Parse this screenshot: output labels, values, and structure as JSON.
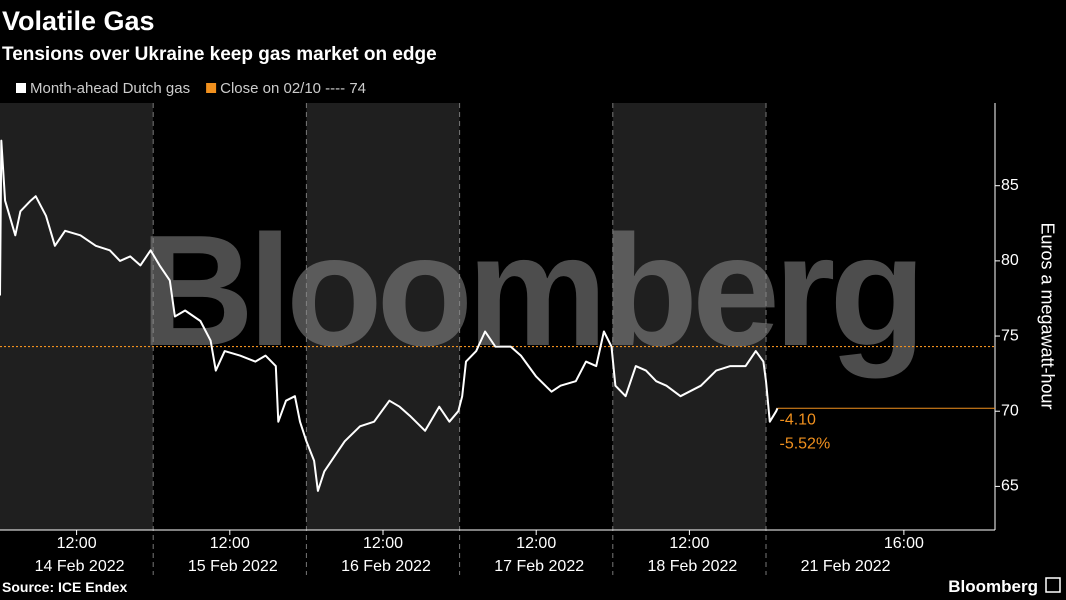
{
  "chart_data": {
    "type": "line",
    "title": "Volatile Gas",
    "subtitle": "Tensions over Ukraine keep gas market on edge",
    "y_axis_label": "Euros a megawatt-hour",
    "source": "Source: ICE Endex",
    "brand": "Bloomberg",
    "watermark": "Bloomberg",
    "days": [
      "14 Feb 2022",
      "15 Feb 2022",
      "16 Feb 2022",
      "17 Feb 2022",
      "18 Feb 2022",
      "21 Feb 2022"
    ],
    "x": [
      "14 Feb 2022 07:00",
      "14 Feb 2022 07:05",
      "14 Feb 2022 07:20",
      "14 Feb 2022 08:00",
      "14 Feb 2022 08:20",
      "14 Feb 2022 09:00",
      "14 Feb 2022 09:20",
      "14 Feb 2022 10:00",
      "14 Feb 2022 10:35",
      "14 Feb 2022 11:15",
      "14 Feb 2022 12:15",
      "14 Feb 2022 13:15",
      "14 Feb 2022 14:10",
      "14 Feb 2022 14:50",
      "14 Feb 2022 15:30",
      "14 Feb 2022 16:10",
      "14 Feb 2022 16:50",
      "15 Feb 2022 07:25",
      "15 Feb 2022 08:05",
      "15 Feb 2022 08:25",
      "15 Feb 2022 09:05",
      "15 Feb 2022 10:05",
      "15 Feb 2022 10:45",
      "15 Feb 2022 11:05",
      "15 Feb 2022 11:40",
      "15 Feb 2022 12:40",
      "15 Feb 2022 13:40",
      "15 Feb 2022 14:20",
      "15 Feb 2022 15:00",
      "15 Feb 2022 15:10",
      "15 Feb 2022 15:40",
      "15 Feb 2022 16:15",
      "15 Feb 2022 16:35",
      "16 Feb 2022 07:00",
      "16 Feb 2022 07:30",
      "16 Feb 2022 07:45",
      "16 Feb 2022 08:10",
      "16 Feb 2022 08:50",
      "16 Feb 2022 09:30",
      "16 Feb 2022 10:30",
      "16 Feb 2022 11:25",
      "16 Feb 2022 12:25",
      "16 Feb 2022 13:05",
      "16 Feb 2022 13:45",
      "16 Feb 2022 14:45",
      "16 Feb 2022 15:40",
      "16 Feb 2022 16:20",
      "16 Feb 2022 16:55",
      "17 Feb 2022 07:10",
      "17 Feb 2022 07:25",
      "17 Feb 2022 08:05",
      "17 Feb 2022 08:40",
      "17 Feb 2022 09:20",
      "17 Feb 2022 10:20",
      "17 Feb 2022 11:00",
      "17 Feb 2022 12:00",
      "17 Feb 2022 13:00",
      "17 Feb 2022 13:35",
      "17 Feb 2022 14:35",
      "17 Feb 2022 15:15",
      "17 Feb 2022 15:55",
      "17 Feb 2022 16:25",
      "17 Feb 2022 16:55",
      "18 Feb 2022 07:10",
      "18 Feb 2022 07:50",
      "18 Feb 2022 08:30",
      "18 Feb 2022 09:10",
      "18 Feb 2022 09:50",
      "18 Feb 2022 10:30",
      "18 Feb 2022 11:25",
      "18 Feb 2022 12:45",
      "18 Feb 2022 13:45",
      "18 Feb 2022 14:40",
      "18 Feb 2022 15:40",
      "18 Feb 2022 16:20",
      "18 Feb 2022 16:50",
      "21 Feb 2022 07:00",
      "21 Feb 2022 07:15",
      "21 Feb 2022 07:40",
      "21 Feb 2022 07:45"
    ],
    "series": [
      {
        "name": "Month-ahead Dutch gas",
        "color": "#ffffff",
        "values": [
          77.7,
          88.0,
          84.0,
          81.7,
          83.3,
          84.0,
          84.3,
          83.0,
          81.0,
          82.0,
          81.7,
          81.0,
          80.7,
          80.0,
          80.3,
          79.7,
          80.7,
          79.7,
          78.7,
          76.3,
          76.7,
          76.0,
          74.7,
          72.7,
          74.0,
          73.7,
          73.3,
          73.7,
          73.0,
          69.3,
          70.7,
          71.0,
          69.3,
          68.0,
          66.7,
          64.7,
          66.0,
          67.0,
          68.0,
          69.0,
          69.3,
          70.7,
          70.3,
          69.7,
          68.7,
          70.3,
          69.3,
          70.0,
          71.0,
          73.3,
          74.0,
          75.3,
          74.3,
          74.3,
          73.7,
          72.3,
          71.3,
          71.7,
          72.0,
          73.3,
          73.0,
          75.3,
          74.3,
          71.7,
          71.0,
          73.0,
          72.7,
          72.0,
          71.7,
          71.0,
          71.7,
          72.7,
          73.0,
          73.0,
          74.0,
          73.3,
          72.0,
          69.3,
          70.0,
          70.2
        ]
      }
    ],
    "reference_line": {
      "name": "Close on 02/10 ---- 74",
      "value": 74.3,
      "color": "#f0901e"
    },
    "annotations": [
      {
        "value": -4.1,
        "label": "-4.10"
      },
      {
        "value": -5.52,
        "label": "-5.52%"
      }
    ],
    "ylim": [
      62.1,
      90.5
    ],
    "yticks": [
      65,
      70,
      75,
      80,
      85
    ],
    "xticks": [
      {
        "value": "14 Feb 2022 12:00",
        "label": "12:00"
      },
      {
        "value": "15 Feb 2022 12:00",
        "label": "12:00"
      },
      {
        "value": "16 Feb 2022 12:00",
        "label": "12:00"
      },
      {
        "value": "17 Feb 2022 12:00",
        "label": "12:00"
      },
      {
        "value": "18 Feb 2022 12:00",
        "label": "12:00"
      },
      {
        "value": "21 Feb 2022 16:00",
        "label": "16:00"
      }
    ]
  }
}
